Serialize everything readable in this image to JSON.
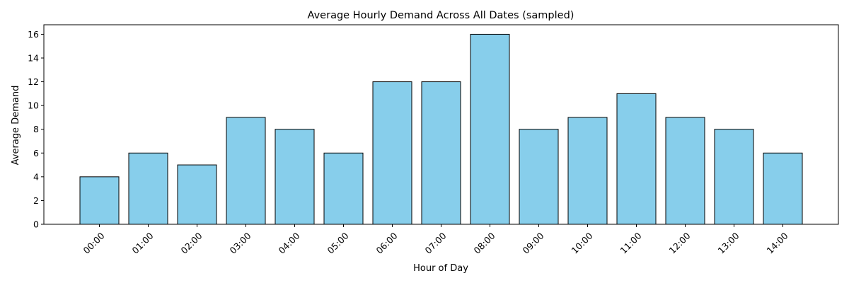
{
  "chart_data": {
    "type": "bar",
    "title": "Average Hourly Demand Across All Dates (sampled)",
    "xlabel": "Hour of Day",
    "ylabel": "Average Demand",
    "categories": [
      "00:00",
      "01:00",
      "02:00",
      "03:00",
      "04:00",
      "05:00",
      "06:00",
      "07:00",
      "08:00",
      "09:00",
      "10:00",
      "11:00",
      "12:00",
      "13:00",
      "14:00"
    ],
    "values": [
      4,
      6,
      5,
      9,
      8,
      6,
      12,
      12,
      16,
      8,
      9,
      11,
      9,
      8,
      6
    ],
    "ylim": [
      0,
      16.8
    ],
    "yticks": [
      0,
      2,
      4,
      6,
      8,
      10,
      12,
      14,
      16
    ],
    "grid": false,
    "bar_color": "#87CEEB",
    "edge_color": "#000000"
  }
}
